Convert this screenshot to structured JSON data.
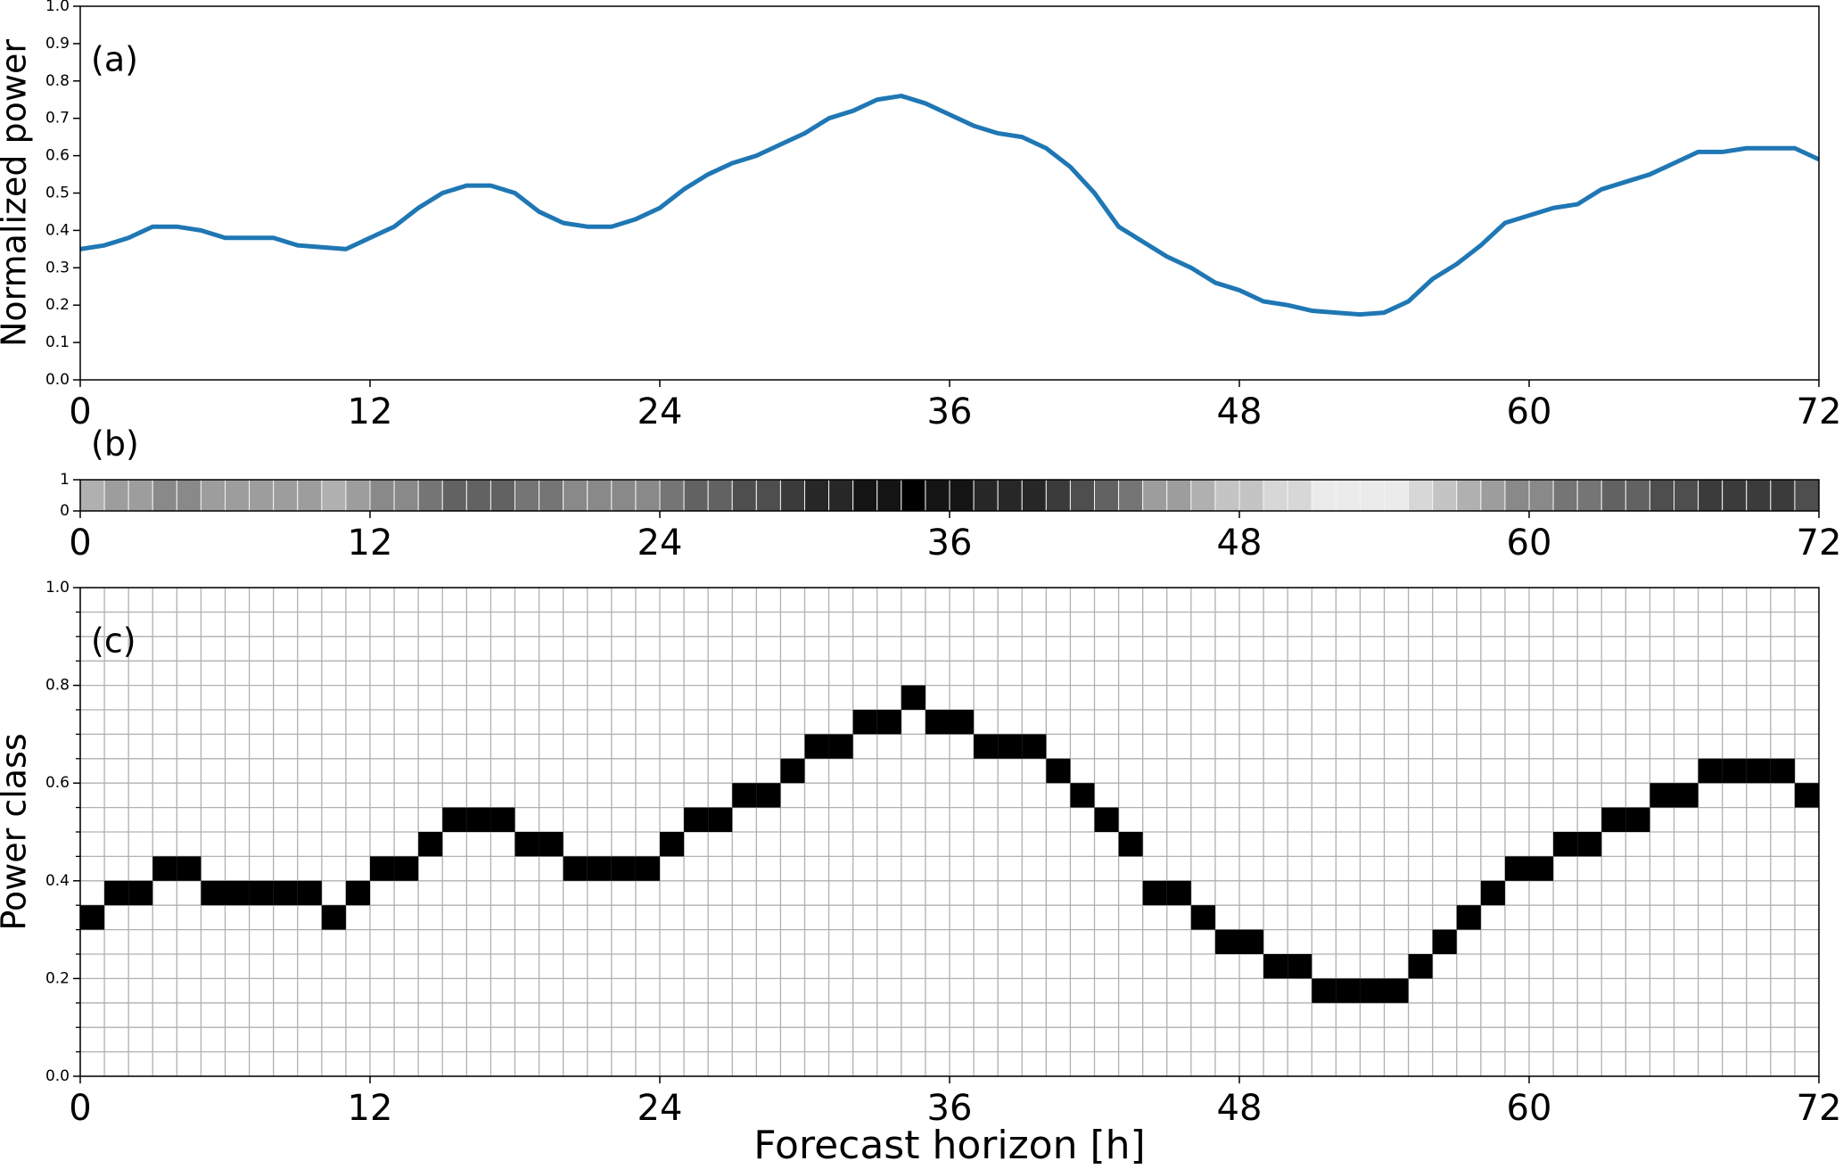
{
  "chart_data": [
    {
      "type": "line",
      "label": "(a)",
      "ylabel": "Normalized power",
      "x": [
        0,
        1,
        2,
        3,
        4,
        5,
        6,
        7,
        8,
        9,
        10,
        11,
        12,
        13,
        14,
        15,
        16,
        17,
        18,
        19,
        20,
        21,
        22,
        23,
        24,
        25,
        26,
        27,
        28,
        29,
        30,
        31,
        32,
        33,
        34,
        35,
        36,
        37,
        38,
        39,
        40,
        41,
        42,
        43,
        44,
        45,
        46,
        47,
        48,
        49,
        50,
        51,
        52,
        53,
        54,
        55,
        56,
        57,
        58,
        59,
        60,
        61,
        62,
        63,
        64,
        65,
        66,
        67,
        68,
        69,
        70,
        71,
        72
      ],
      "values": [
        0.35,
        0.36,
        0.38,
        0.41,
        0.41,
        0.4,
        0.38,
        0.38,
        0.38,
        0.36,
        0.355,
        0.35,
        0.38,
        0.41,
        0.46,
        0.5,
        0.52,
        0.52,
        0.5,
        0.45,
        0.42,
        0.41,
        0.41,
        0.43,
        0.46,
        0.51,
        0.55,
        0.58,
        0.6,
        0.63,
        0.66,
        0.7,
        0.72,
        0.75,
        0.76,
        0.74,
        0.71,
        0.68,
        0.66,
        0.65,
        0.62,
        0.57,
        0.5,
        0.41,
        0.37,
        0.33,
        0.3,
        0.26,
        0.24,
        0.21,
        0.2,
        0.185,
        0.18,
        0.175,
        0.18,
        0.21,
        0.27,
        0.31,
        0.36,
        0.42,
        0.44,
        0.46,
        0.47,
        0.51,
        0.53,
        0.55,
        0.58,
        0.61,
        0.61,
        0.62,
        0.62,
        0.62,
        0.59
      ],
      "color": "#1f77b4",
      "xlim": [
        0,
        72
      ],
      "xticks": [
        0,
        12,
        24,
        36,
        48,
        60,
        72
      ],
      "ylim": [
        0,
        1
      ],
      "yticks": [
        {
          "value": 0,
          "label": "0.0"
        },
        0.1,
        0.2,
        0.3,
        0.4,
        0.5,
        0.6,
        0.7,
        0.8,
        0.9,
        {
          "value": 1,
          "label": "1.0"
        }
      ]
    },
    {
      "type": "heatmap",
      "label": "(b)",
      "x": [
        0,
        1,
        2,
        3,
        4,
        5,
        6,
        7,
        8,
        9,
        10,
        11,
        12,
        13,
        14,
        15,
        16,
        17,
        18,
        19,
        20,
        21,
        22,
        23,
        24,
        25,
        26,
        27,
        28,
        29,
        30,
        31,
        32,
        33,
        34,
        35,
        36,
        37,
        38,
        39,
        40,
        41,
        42,
        43,
        44,
        45,
        46,
        47,
        48,
        49,
        50,
        51,
        52,
        53,
        54,
        55,
        56,
        57,
        58,
        59,
        60,
        61,
        62,
        63,
        64,
        65,
        66,
        67,
        68,
        69,
        70,
        71
      ],
      "values": [
        0.3,
        0.35,
        0.35,
        0.4,
        0.4,
        0.35,
        0.35,
        0.35,
        0.35,
        0.35,
        0.3,
        0.35,
        0.4,
        0.4,
        0.45,
        0.5,
        0.5,
        0.5,
        0.45,
        0.45,
        0.4,
        0.4,
        0.4,
        0.4,
        0.45,
        0.5,
        0.5,
        0.55,
        0.55,
        0.6,
        0.65,
        0.65,
        0.7,
        0.7,
        0.75,
        0.7,
        0.7,
        0.65,
        0.65,
        0.65,
        0.6,
        0.55,
        0.5,
        0.45,
        0.35,
        0.35,
        0.3,
        0.25,
        0.25,
        0.2,
        0.2,
        0.15,
        0.15,
        0.15,
        0.15,
        0.2,
        0.25,
        0.3,
        0.35,
        0.4,
        0.4,
        0.45,
        0.45,
        0.5,
        0.5,
        0.55,
        0.55,
        0.6,
        0.6,
        0.6,
        0.6,
        0.55
      ],
      "colormap": "Greys",
      "xlim": [
        0,
        72
      ],
      "xticks": [
        0,
        12,
        24,
        36,
        48,
        60,
        72
      ],
      "ylim": [
        0,
        1
      ],
      "yticks": [
        0,
        1
      ]
    },
    {
      "type": "squares",
      "label": "(c)",
      "ylabel": "Power class",
      "xlabel": "Forecast horizon [h]",
      "x": [
        0,
        1,
        2,
        3,
        4,
        5,
        6,
        7,
        8,
        9,
        10,
        11,
        12,
        13,
        14,
        15,
        16,
        17,
        18,
        19,
        20,
        21,
        22,
        23,
        24,
        25,
        26,
        27,
        28,
        29,
        30,
        31,
        32,
        33,
        34,
        35,
        36,
        37,
        38,
        39,
        40,
        41,
        42,
        43,
        44,
        45,
        46,
        47,
        48,
        49,
        50,
        51,
        52,
        53,
        54,
        55,
        56,
        57,
        58,
        59,
        60,
        61,
        62,
        63,
        64,
        65,
        66,
        67,
        68,
        69,
        70,
        71
      ],
      "values": [
        0.3,
        0.35,
        0.35,
        0.4,
        0.4,
        0.35,
        0.35,
        0.35,
        0.35,
        0.35,
        0.3,
        0.35,
        0.4,
        0.4,
        0.45,
        0.5,
        0.5,
        0.5,
        0.45,
        0.45,
        0.4,
        0.4,
        0.4,
        0.4,
        0.45,
        0.5,
        0.5,
        0.55,
        0.55,
        0.6,
        0.65,
        0.65,
        0.7,
        0.7,
        0.75,
        0.7,
        0.7,
        0.65,
        0.65,
        0.65,
        0.6,
        0.55,
        0.5,
        0.45,
        0.35,
        0.35,
        0.3,
        0.25,
        0.25,
        0.2,
        0.2,
        0.15,
        0.15,
        0.15,
        0.15,
        0.2,
        0.25,
        0.3,
        0.35,
        0.4,
        0.4,
        0.45,
        0.45,
        0.5,
        0.5,
        0.55,
        0.55,
        0.6,
        0.6,
        0.6,
        0.6,
        0.55
      ],
      "color": "#000000",
      "grid": true,
      "xlim": [
        0,
        72
      ],
      "xticks": [
        0,
        12,
        24,
        36,
        48,
        60,
        72
      ],
      "ylim": [
        0,
        1
      ],
      "yticks": [
        {
          "value": 0,
          "label": "0.0"
        },
        0.2,
        0.4,
        0.6,
        0.8,
        {
          "value": 1,
          "label": "1.0"
        }
      ],
      "minor_yticks": [
        0.05,
        0.1,
        0.15,
        0.25,
        0.3,
        0.35,
        0.45,
        0.5,
        0.55,
        0.65,
        0.7,
        0.75,
        0.85,
        0.9,
        0.95
      ]
    }
  ]
}
